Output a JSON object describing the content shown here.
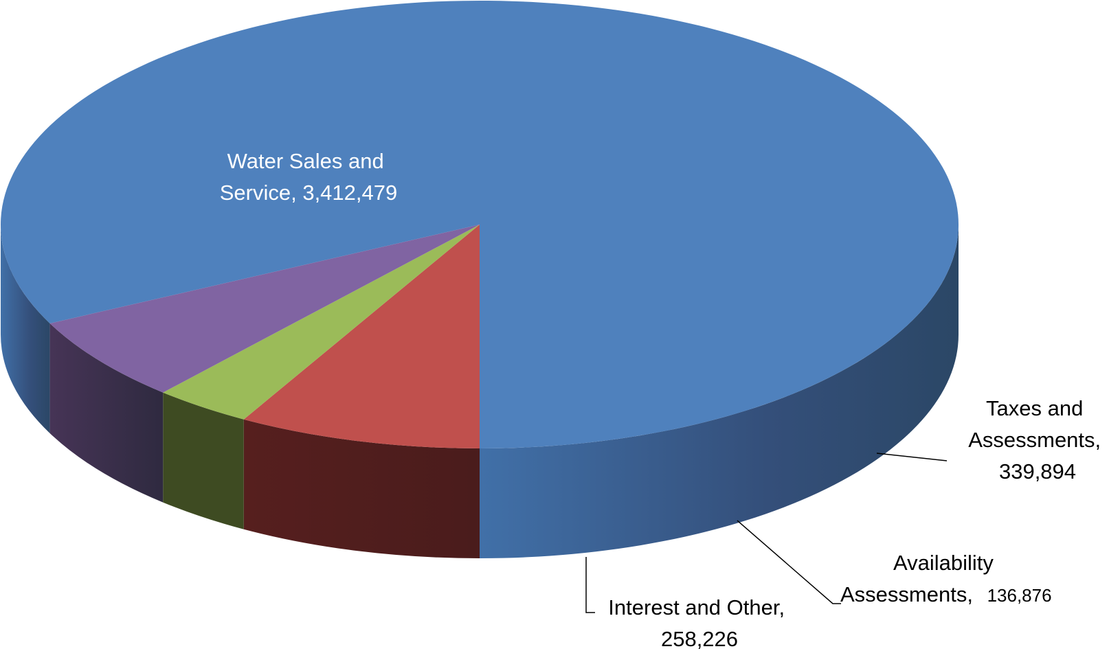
{
  "chart_data": {
    "type": "pie",
    "style": "3d",
    "title": "",
    "slices": [
      {
        "label": "Water Sales and Service",
        "value": 3412479,
        "display": "3,412,479",
        "color": "#4F81BD"
      },
      {
        "label": "Taxes and Assessments",
        "value": 339894,
        "display": "339,894",
        "color": "#C0504D"
      },
      {
        "label": "Availability Assessments",
        "value": 136876,
        "display": "136,876",
        "color": "#9BBB59"
      },
      {
        "label": "Interest and Other",
        "value": 258226,
        "display": "258,226",
        "color": "#8064A2"
      }
    ]
  },
  "labels": {
    "water": {
      "line1": "Water Sales and",
      "line2": "Service,  3,412,479"
    },
    "taxes": {
      "line1": "Taxes and",
      "line2": "Assessments,",
      "line3": "339,894"
    },
    "availability": {
      "line1": "Availability",
      "line2": "Assessments,",
      "value": "136,876"
    },
    "interest": {
      "line1": "Interest and Other,",
      "line2": "258,226"
    }
  }
}
